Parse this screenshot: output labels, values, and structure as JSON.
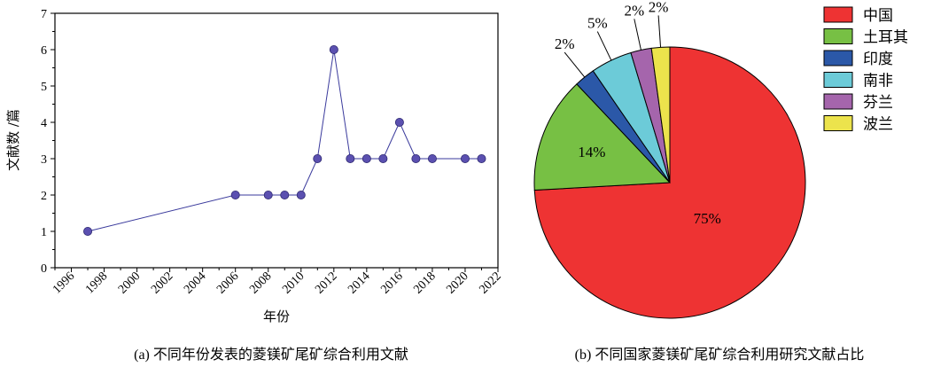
{
  "chart_data": [
    {
      "type": "line",
      "xlabel": "年份",
      "ylabel": "文献数 /篇",
      "xlim": [
        1995,
        2022
      ],
      "ylim": [
        0,
        7
      ],
      "x_ticks": [
        "1996",
        "1998",
        "2000",
        "2002",
        "2004",
        "2006",
        "2008",
        "2010",
        "2012",
        "2014",
        "2016",
        "2018",
        "2020",
        "2022"
      ],
      "y_ticks": [
        "0",
        "1",
        "2",
        "3",
        "4",
        "5",
        "6",
        "7"
      ],
      "x": [
        1997,
        2006,
        2008,
        2009,
        2010,
        2011,
        2012,
        2013,
        2014,
        2015,
        2016,
        2017,
        2018,
        2020,
        2021
      ],
      "values": [
        1,
        2,
        2,
        2,
        2,
        3,
        6,
        3,
        3,
        3,
        4,
        3,
        3,
        3,
        3
      ],
      "color": "#3a3a9c",
      "marker_color": "#5b50b0",
      "caption": "(a) 不同年份发表的菱镁矿尾矿综合利用文献"
    },
    {
      "type": "pie",
      "slices": [
        {
          "label": "中国",
          "value": 75,
          "text": "75%",
          "color": "#ee3333"
        },
        {
          "label": "土耳其",
          "value": 14,
          "text": "14%",
          "color": "#77c044"
        },
        {
          "label": "印度",
          "value": 2.5,
          "text": "2%",
          "color": "#2b58a8"
        },
        {
          "label": "南非",
          "value": 5,
          "text": "5%",
          "color": "#6ccbd8"
        },
        {
          "label": "芬兰",
          "value": 2.5,
          "text": "2%",
          "color": "#a565ac"
        },
        {
          "label": "波兰",
          "value": 2.2,
          "text": "2%",
          "color": "#ece34c"
        }
      ],
      "caption": "(b) 不同国家菱镁矿尾矿综合利用研究文献占比"
    }
  ]
}
